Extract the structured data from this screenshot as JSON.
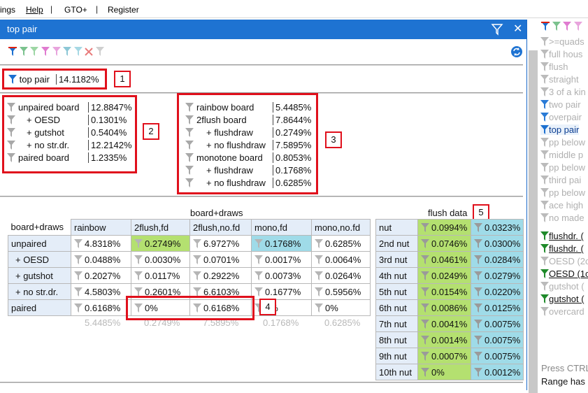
{
  "menubar": {
    "items": [
      "ings",
      "Help",
      "GTO+",
      "Register"
    ]
  },
  "panel": {
    "title": "top pair",
    "filter_icons": [
      "blue-filter",
      "green-filter",
      "green-filter",
      "pink-filter",
      "pink-filter",
      "teal-filter",
      "teal-filter",
      "red-x",
      "gray-filter"
    ],
    "main_filter": {
      "label": "top pair",
      "value": "14.1182%"
    },
    "callouts": [
      "1",
      "2",
      "3",
      "4",
      "5"
    ],
    "board_types": [
      {
        "label": "unpaired board",
        "value": "12.8847%"
      },
      {
        "label": "+ OESD",
        "value": "0.1301%"
      },
      {
        "label": "+ gutshot",
        "value": "0.5404%"
      },
      {
        "label": "+ no str.dr.",
        "value": "12.2142%"
      },
      {
        "label": "paired board",
        "value": "1.2335%"
      }
    ],
    "flush_types": [
      {
        "label": "rainbow board",
        "value": "5.4485%"
      },
      {
        "label": "2flush board",
        "value": "7.8644%"
      },
      {
        "label": "+ flushdraw",
        "value": "0.2749%"
      },
      {
        "label": "+ no flushdraw",
        "value": "7.5895%"
      },
      {
        "label": "monotone board",
        "value": "0.8053%"
      },
      {
        "label": "+ flushdraw",
        "value": "0.1768%"
      },
      {
        "label": "+ no flushdraw",
        "value": "0.6285%"
      }
    ],
    "board_draws": {
      "title": "board+draws",
      "corner": "board+draws",
      "columns": [
        "rainbow",
        "2flush,fd",
        "2flush,no.fd",
        "mono,fd",
        "mono,no.fd"
      ],
      "rows": [
        {
          "label": "unpaired",
          "cells": [
            "4.8318%",
            "0.2749%",
            "6.9727%",
            "0.1768%",
            "0.6285%"
          ]
        },
        {
          "label": "+ OESD",
          "cells": [
            "0.0488%",
            "0.0030%",
            "0.0701%",
            "0.0017%",
            "0.0064%"
          ]
        },
        {
          "label": "+ gutshot",
          "cells": [
            "0.2027%",
            "0.0117%",
            "0.2922%",
            "0.0073%",
            "0.0264%"
          ]
        },
        {
          "label": "+ no str.dr.",
          "cells": [
            "4.5803%",
            "0.2601%",
            "6.6103%",
            "0.1677%",
            "0.5956%"
          ]
        },
        {
          "label": "paired",
          "cells": [
            "0.6168%",
            "0%",
            "0.6168%",
            "0%",
            "0%"
          ]
        }
      ],
      "totals": [
        "5.4485%",
        "0.2749%",
        "7.5895%",
        "0.1768%",
        "0.6285%"
      ]
    },
    "flush_data": {
      "title": "flush data",
      "rows": [
        {
          "label": "nut",
          "a": "0.0994%",
          "b": "0.0323%"
        },
        {
          "label": "2nd nut",
          "a": "0.0746%",
          "b": "0.0300%"
        },
        {
          "label": "3rd nut",
          "a": "0.0461%",
          "b": "0.0284%"
        },
        {
          "label": "4th nut",
          "a": "0.0249%",
          "b": "0.0279%"
        },
        {
          "label": "5th nut",
          "a": "0.0154%",
          "b": "0.0220%"
        },
        {
          "label": "6th nut",
          "a": "0.0086%",
          "b": "0.0125%"
        },
        {
          "label": "7th nut",
          "a": "0.0041%",
          "b": "0.0075%"
        },
        {
          "label": "8th nut",
          "a": "0.0014%",
          "b": "0.0075%"
        },
        {
          "label": "9th nut",
          "a": "0.0007%",
          "b": "0.0075%"
        },
        {
          "label": "10th nut",
          "a": "0%",
          "b": "0.0012%"
        }
      ]
    }
  },
  "sidebar": {
    "items": [
      {
        "label": ">=quads",
        "state": "gray"
      },
      {
        "label": "full hous",
        "state": "gray"
      },
      {
        "label": "flush",
        "state": "gray"
      },
      {
        "label": "straight",
        "state": "gray"
      },
      {
        "label": "3 of a kin",
        "state": "gray"
      },
      {
        "label": "two pair",
        "state": "gray"
      },
      {
        "label": "overpair",
        "state": "gray"
      },
      {
        "label": "top pair",
        "state": "active"
      },
      {
        "label": "pp below",
        "state": "gray"
      },
      {
        "label": "middle p",
        "state": "gray"
      },
      {
        "label": "pp below",
        "state": "gray"
      },
      {
        "label": "third pai",
        "state": "gray"
      },
      {
        "label": "pp below",
        "state": "gray"
      },
      {
        "label": "ace high",
        "state": "gray"
      },
      {
        "label": "no made",
        "state": "gray"
      }
    ],
    "draws": [
      {
        "label": "flushdr. (",
        "state": "dark"
      },
      {
        "label": "flushdr. (",
        "state": "dark"
      },
      {
        "label": "OESD (2c",
        "state": "gray"
      },
      {
        "label": "OESD (1c",
        "state": "dark"
      },
      {
        "label": "gutshot (",
        "state": "gray"
      },
      {
        "label": "gutshot (",
        "state": "dark"
      },
      {
        "label": "overcard",
        "state": "gray"
      }
    ],
    "footer_1": "Press CTRL",
    "footer_2": "Range has"
  },
  "colors": {
    "titlebar": "#1e73d2",
    "highlight_red": "#e0101c",
    "cell_green": "#b4e070",
    "cell_blue": "#9fdbe8",
    "header_blue": "#e4edf8"
  }
}
